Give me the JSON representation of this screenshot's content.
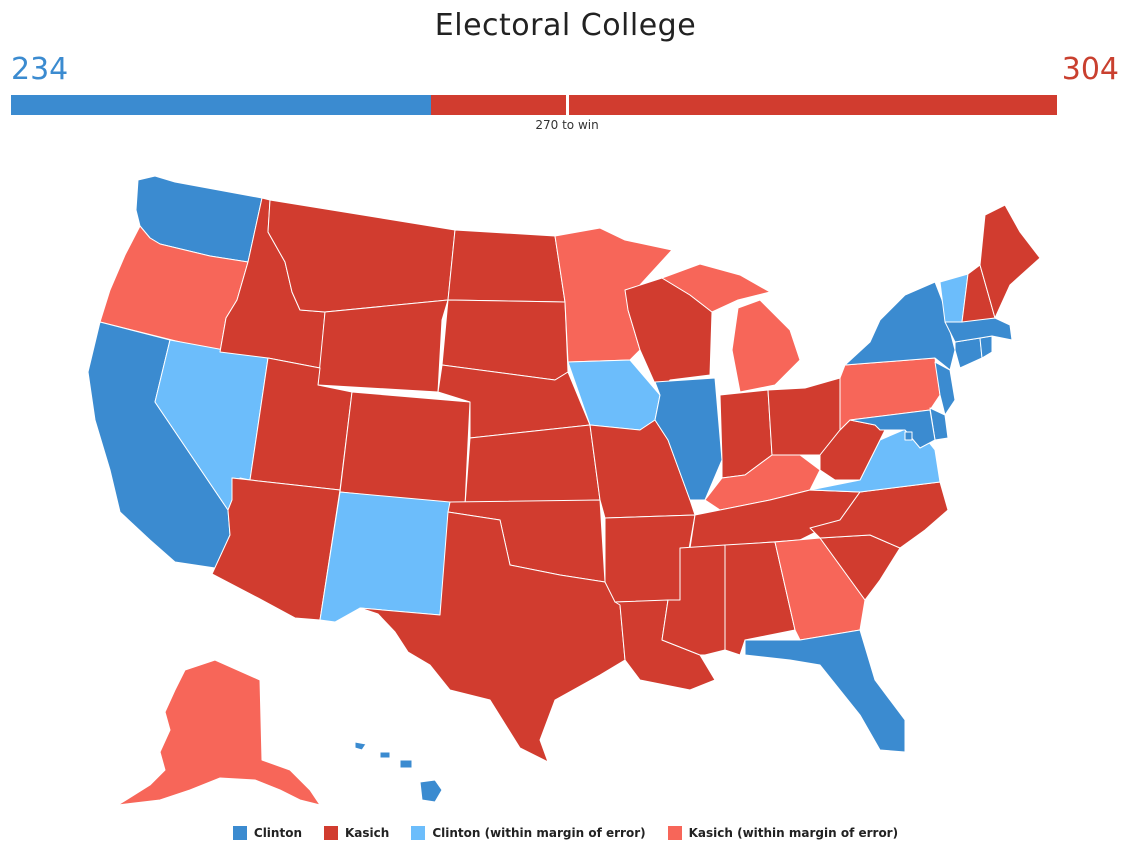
{
  "title": "Electoral College",
  "clinton_total": "234",
  "kasich_total": "304",
  "win_label": "270 to win",
  "total_ev": 538,
  "win_threshold": 270,
  "bar_segments": [
    {
      "category": "clinton",
      "value": 204
    },
    {
      "category": "kasich_margin",
      "value": 0
    },
    {
      "category": "kasich",
      "value": 304
    }
  ],
  "colors": {
    "clinton": "#3b8bd0",
    "kasich": "#d13c2f",
    "clinton_margin": "#6cbdfb",
    "kasich_margin": "#f76659",
    "clinton_text": "#3b8bd0",
    "kasich_text": "#c9402f"
  },
  "legend": [
    {
      "key": "clinton",
      "label": "Clinton"
    },
    {
      "key": "kasich",
      "label": "Kasich"
    },
    {
      "key": "clinton_margin",
      "label": "Clinton (within margin of error)"
    },
    {
      "key": "kasich_margin",
      "label": "Kasich (within margin of error)"
    }
  ],
  "states": {
    "WA": "clinton",
    "OR": "kasich_margin",
    "CA": "clinton",
    "NV": "clinton_margin",
    "ID": "kasich",
    "MT": "kasich",
    "WY": "kasich",
    "UT": "kasich",
    "AZ": "kasich",
    "CO": "kasich",
    "NM": "clinton_margin",
    "ND": "kasich",
    "SD": "kasich",
    "NE": "kasich",
    "KS": "kasich",
    "OK": "kasich",
    "TX": "kasich",
    "MN": "kasich_margin",
    "IA": "clinton_margin",
    "MO": "kasich",
    "AR": "kasich",
    "LA": "kasich",
    "WI": "kasich",
    "IL": "clinton",
    "MI": "kasich_margin",
    "IN": "kasich",
    "OH": "kasich",
    "KY": "kasich_margin",
    "TN": "kasich",
    "MS": "kasich",
    "AL": "kasich",
    "GA": "kasich_margin",
    "FL": "clinton",
    "SC": "kasich",
    "NC": "kasich",
    "VA": "clinton_margin",
    "WV": "kasich",
    "PA": "kasich_margin",
    "NY": "clinton",
    "VT": "clinton_margin",
    "NH": "kasich",
    "ME": "kasich",
    "MA": "clinton",
    "CT": "clinton",
    "RI": "clinton",
    "NJ": "clinton",
    "DE": "clinton",
    "MD": "clinton",
    "DC": "clinton",
    "AK": "kasich_margin",
    "HI": "clinton",
    "MI_UP": "kasich_margin"
  }
}
